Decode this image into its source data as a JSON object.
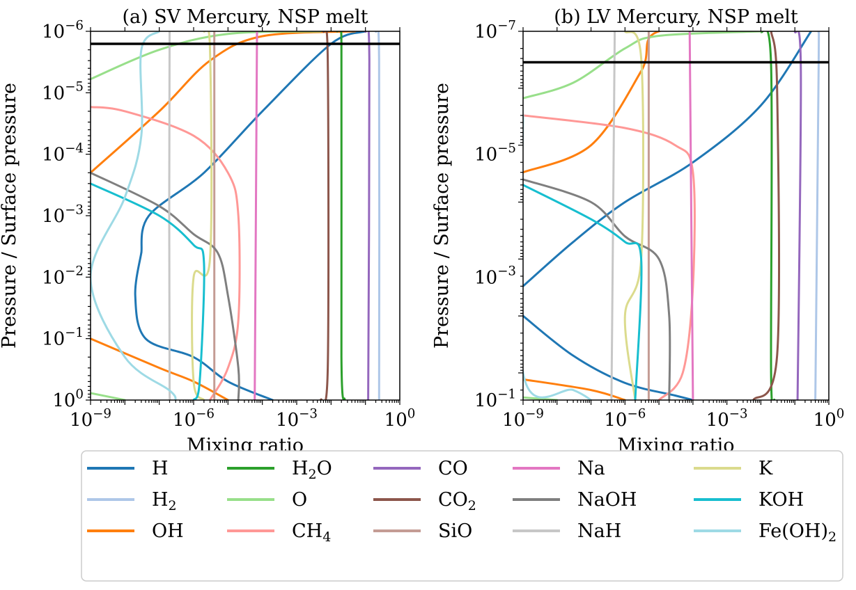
{
  "chart_data": [
    {
      "type": "line",
      "title": "(a) SV Mercury, NSP melt",
      "xlabel": "Mixing ratio",
      "ylabel": "Pressure / Surface pressure",
      "xscale": "log",
      "yscale": "log",
      "xlim": [
        1e-09,
        1
      ],
      "ylim": [
        1,
        1e-06
      ],
      "y_inverted": true,
      "x_ticks": [
        {
          "base": "10",
          "exp": "−9"
        },
        {
          "base": "10",
          "exp": "−6"
        },
        {
          "base": "10",
          "exp": "−3"
        },
        {
          "base": "10",
          "exp": "0"
        }
      ],
      "y_ticks": [
        {
          "base": "10",
          "exp": "0"
        },
        {
          "base": "10",
          "exp": "−1"
        },
        {
          "base": "10",
          "exp": "−2"
        },
        {
          "base": "10",
          "exp": "−3"
        },
        {
          "base": "10",
          "exp": "−4"
        },
        {
          "base": "10",
          "exp": "−5"
        },
        {
          "base": "10",
          "exp": "−6"
        }
      ],
      "hline": 1.6e-06,
      "series": [
        {
          "name": "H",
          "points": [
            [
              3e-08,
              0.004
            ],
            [
              5e-08,
              0.001
            ],
            [
              2e-06,
              0.0002
            ],
            [
              0.0001,
              2e-05
            ],
            [
              0.01,
              1.6e-06
            ],
            [
              0.1,
              1e-06
            ]
          ]
        },
        {
          "name": "H",
          "points": [
            [
              3e-08,
              0.004
            ],
            [
              2e-08,
              0.02
            ],
            [
              4e-08,
              0.1
            ],
            [
              1e-06,
              0.2
            ],
            [
              1e-05,
              0.5
            ],
            [
              0.0002,
              1
            ]
          ]
        },
        {
          "name": "H2",
          "points": [
            [
              0.2,
              1e-06
            ],
            [
              0.25,
              3e-06
            ],
            [
              0.25,
              1
            ]
          ]
        },
        {
          "name": "OH",
          "points": [
            [
              1e-09,
              0.0002
            ],
            [
              1e-07,
              2e-05
            ],
            [
              3e-06,
              3e-06
            ],
            [
              0.0001,
              1.2e-06
            ],
            [
              0.05,
              1e-06
            ]
          ]
        },
        {
          "name": "OH",
          "points": [
            [
              1e-09,
              0.1
            ],
            [
              1e-07,
              0.3
            ],
            [
              1e-06,
              0.5
            ],
            [
              1e-05,
              1
            ]
          ]
        },
        {
          "name": "H2O",
          "points": [
            [
              0.015,
              1e-06
            ],
            [
              0.02,
              1.5e-06
            ],
            [
              0.02,
              0.2
            ],
            [
              0.025,
              1
            ]
          ]
        },
        {
          "name": "O",
          "points": [
            [
              1e-09,
              6e-06
            ],
            [
              1e-07,
              2e-06
            ],
            [
              1e-05,
              1.1e-06
            ],
            [
              0.005,
              1e-06
            ]
          ]
        },
        {
          "name": "O",
          "points": [
            [
              1e-09,
              0.77
            ],
            [
              1e-08,
              1
            ]
          ]
        },
        {
          "name": "CH4",
          "points": [
            [
              1e-09,
              1.7e-05
            ],
            [
              1e-08,
              2e-05
            ],
            [
              1e-06,
              5e-05
            ],
            [
              1e-05,
              0.0002
            ],
            [
              2e-05,
              0.001
            ],
            [
              2e-05,
              0.05
            ],
            [
              1e-05,
              0.3
            ],
            [
              3e-06,
              1
            ]
          ]
        },
        {
          "name": "CO",
          "points": [
            [
              0.1,
              1e-06
            ],
            [
              0.13,
              3e-06
            ],
            [
              0.12,
              1
            ]
          ]
        },
        {
          "name": "CO2",
          "points": [
            [
              0.006,
              1e-06
            ],
            [
              0.008,
              3e-06
            ],
            [
              0.008,
              0.3
            ],
            [
              0.005,
              1
            ]
          ]
        },
        {
          "name": "SiO",
          "points": [
            [
              4e-06,
              1e-06
            ],
            [
              4e-06,
              1
            ]
          ]
        },
        {
          "name": "Na",
          "points": [
            [
              7e-05,
              1e-06
            ],
            [
              6e-05,
              1
            ]
          ]
        },
        {
          "name": "NaOH",
          "points": [
            [
              1e-09,
              0.0002
            ],
            [
              1e-07,
              0.0007
            ],
            [
              1e-06,
              0.002
            ],
            [
              5e-06,
              0.004
            ],
            [
              1e-05,
              0.02
            ],
            [
              2e-05,
              0.3
            ],
            [
              2e-05,
              1
            ]
          ]
        },
        {
          "name": "NaH",
          "points": [
            [
              2e-07,
              1e-06
            ],
            [
              2e-07,
              0.7
            ],
            [
              3e-07,
              1
            ]
          ]
        },
        {
          "name": "K",
          "points": [
            [
              2e-06,
              1e-06
            ],
            [
              3e-06,
              2e-06
            ],
            [
              3e-06,
              0.005
            ],
            [
              1e-06,
              0.01
            ],
            [
              1e-06,
              0.5
            ],
            [
              2e-06,
              1
            ]
          ]
        },
        {
          "name": "KOH",
          "points": [
            [
              1e-09,
              0.0003
            ],
            [
              1e-07,
              0.001
            ],
            [
              1e-06,
              0.003
            ],
            [
              2e-06,
              0.006
            ],
            [
              1.5e-06,
              0.5
            ],
            [
              1e-06,
              1
            ]
          ]
        },
        {
          "name": "Fe(OH)2",
          "points": [
            [
              1e-07,
              1e-06
            ],
            [
              3e-08,
              2e-06
            ],
            [
              3e-08,
              5e-05
            ],
            [
              1e-08,
              0.0005
            ],
            [
              1e-09,
              0.01
            ],
            [
              1e-08,
              0.2
            ],
            [
              2e-07,
              0.7
            ],
            [
              3e-07,
              1
            ]
          ]
        }
      ]
    },
    {
      "type": "line",
      "title": "(b) LV Mercury, NSP melt",
      "xlabel": "Mixing ratio",
      "ylabel": "Pressure / Surface pressure",
      "xscale": "log",
      "yscale": "log",
      "xlim": [
        1e-09,
        1
      ],
      "ylim": [
        0.3,
        1e-07
      ],
      "y_inverted": true,
      "x_ticks": [
        {
          "base": "10",
          "exp": "−9"
        },
        {
          "base": "10",
          "exp": "−6"
        },
        {
          "base": "10",
          "exp": "−3"
        },
        {
          "base": "10",
          "exp": "0"
        }
      ],
      "y_ticks": [
        {
          "base": "10",
          "exp": "−1"
        },
        {
          "base": "10",
          "exp": "−3"
        },
        {
          "base": "10",
          "exp": "−5"
        },
        {
          "base": "10",
          "exp": "−7"
        }
      ],
      "hline": 3.5e-07,
      "series": [
        {
          "name": "H",
          "points": [
            [
              1e-09,
              0.003
            ],
            [
              3e-08,
              0.0005
            ],
            [
              1e-06,
              0.0001
            ],
            [
              0.0001,
              2e-05
            ],
            [
              0.01,
              2e-06
            ],
            [
              0.3,
              1e-07
            ]
          ]
        },
        {
          "name": "H",
          "points": [
            [
              1e-09,
              0.01
            ],
            [
              3e-08,
              0.05
            ],
            [
              1e-06,
              0.15
            ],
            [
              3e-05,
              0.25
            ],
            [
              0.0001,
              0.3
            ]
          ]
        },
        {
          "name": "H2",
          "points": [
            [
              0.5,
              1e-07
            ],
            [
              0.5,
              5e-07
            ],
            [
              0.4,
              0.3
            ]
          ]
        },
        {
          "name": "OH",
          "points": [
            [
              1e-09,
              3e-05
            ],
            [
              1e-07,
              1e-05
            ],
            [
              3e-06,
              5e-07
            ],
            [
              1e-05,
              1e-07
            ],
            [
              0.01,
              1e-07
            ]
          ]
        },
        {
          "name": "OH",
          "points": [
            [
              1e-09,
              0.13
            ],
            [
              1e-07,
              0.2
            ],
            [
              1e-06,
              0.3
            ]
          ]
        },
        {
          "name": "H2O",
          "points": [
            [
              0.01,
              1e-07
            ],
            [
              0.02,
              4e-07
            ],
            [
              0.02,
              0.1
            ],
            [
              0.025,
              0.3
            ]
          ]
        },
        {
          "name": "O",
          "points": [
            [
              1e-09,
              1.5e-06
            ],
            [
              3e-08,
              8e-07
            ],
            [
              1e-06,
              2e-07
            ],
            [
              1e-05,
              1.2e-07
            ],
            [
              0.01,
              1e-07
            ]
          ]
        },
        {
          "name": "O",
          "points": [
            [
              1e-09,
              0.27
            ],
            [
              1e-08,
              0.3
            ]
          ]
        },
        {
          "name": "CH4",
          "points": [
            [
              1e-09,
              3e-06
            ],
            [
              1e-06,
              5e-06
            ],
            [
              3e-05,
              1e-05
            ],
            [
              0.0001,
              3e-05
            ],
            [
              0.0001,
              0.003
            ],
            [
              5e-05,
              0.1
            ],
            [
              1e-05,
              0.3
            ]
          ]
        },
        {
          "name": "CO",
          "points": [
            [
              0.1,
              1e-07
            ],
            [
              0.15,
              5e-07
            ],
            [
              0.12,
              0.3
            ]
          ]
        },
        {
          "name": "CO2",
          "points": [
            [
              0.02,
              1e-07
            ],
            [
              0.03,
              1e-06
            ],
            [
              0.03,
              0.05
            ],
            [
              0.006,
              0.3
            ]
          ]
        },
        {
          "name": "SiO",
          "points": [
            [
              5e-06,
              1e-07
            ],
            [
              5e-06,
              0.3
            ]
          ]
        },
        {
          "name": "Na",
          "points": [
            [
              8e-05,
              1e-07
            ],
            [
              0.0001,
              0.3
            ]
          ]
        },
        {
          "name": "NaOH",
          "points": [
            [
              1e-09,
              4e-05
            ],
            [
              1e-07,
              0.0001
            ],
            [
              1e-06,
              0.0004
            ],
            [
              1e-05,
              0.001
            ],
            [
              2e-05,
              0.01
            ],
            [
              2e-05,
              0.3
            ]
          ]
        },
        {
          "name": "NaH",
          "points": [
            [
              5e-07,
              1e-07
            ],
            [
              4e-07,
              0.3
            ]
          ]
        },
        {
          "name": "K",
          "points": [
            [
              1e-06,
              1e-07
            ],
            [
              3e-06,
              3e-07
            ],
            [
              3e-06,
              0.001
            ],
            [
              1e-06,
              0.01
            ],
            [
              2e-06,
              0.3
            ]
          ]
        },
        {
          "name": "KOH",
          "points": [
            [
              1e-09,
              5e-05
            ],
            [
              1e-07,
              0.0002
            ],
            [
              1e-06,
              0.0005
            ],
            [
              3e-06,
              0.001
            ],
            [
              2e-06,
              0.3
            ]
          ]
        },
        {
          "name": "Fe(OH)2",
          "points": [
            [
              1e-09,
              3e-06
            ],
            [
              1e-09,
              0.1
            ],
            [
              3e-08,
              0.2
            ],
            [
              1e-07,
              0.3
            ]
          ]
        }
      ]
    }
  ],
  "legend": {
    "placement": "bottom",
    "columns": [
      [
        {
          "name": "H",
          "base": "H",
          "sub": "",
          "post": ""
        },
        {
          "name": "H2",
          "base": "H",
          "sub": "2",
          "post": ""
        },
        {
          "name": "OH",
          "base": "OH",
          "sub": "",
          "post": ""
        }
      ],
      [
        {
          "name": "H2O",
          "base": "H",
          "sub": "2",
          "post": "O"
        },
        {
          "name": "O",
          "base": "O",
          "sub": "",
          "post": ""
        },
        {
          "name": "CH4",
          "base": "CH",
          "sub": "4",
          "post": ""
        }
      ],
      [
        {
          "name": "CO",
          "base": "CO",
          "sub": "",
          "post": ""
        },
        {
          "name": "CO2",
          "base": "CO",
          "sub": "2",
          "post": ""
        },
        {
          "name": "SiO",
          "base": "SiO",
          "sub": "",
          "post": ""
        }
      ],
      [
        {
          "name": "Na",
          "base": "Na",
          "sub": "",
          "post": ""
        },
        {
          "name": "NaOH",
          "base": "NaOH",
          "sub": "",
          "post": ""
        },
        {
          "name": "NaH",
          "base": "NaH",
          "sub": "",
          "post": ""
        }
      ],
      [
        {
          "name": "K",
          "base": "K",
          "sub": "",
          "post": ""
        },
        {
          "name": "KOH",
          "base": "KOH",
          "sub": "",
          "post": ""
        },
        {
          "name": "Fe(OH)2",
          "base": "Fe(OH)",
          "sub": "2",
          "post": ""
        }
      ]
    ]
  },
  "colors": {
    "H": "#1f77b4",
    "H2": "#aec7e8",
    "OH": "#ff7f0e",
    "H2O": "#2ca02c",
    "O": "#98df8a",
    "CH4": "#ff9896",
    "CO": "#9467bd",
    "CO2": "#8c564b",
    "SiO": "#c49c94",
    "Na": "#e377c2",
    "NaOH": "#7f7f7f",
    "NaH": "#c7c7c7",
    "K": "#dbdb8d",
    "KOH": "#17becf",
    "Fe(OH)2": "#9edae5",
    "hline": "#000000"
  }
}
